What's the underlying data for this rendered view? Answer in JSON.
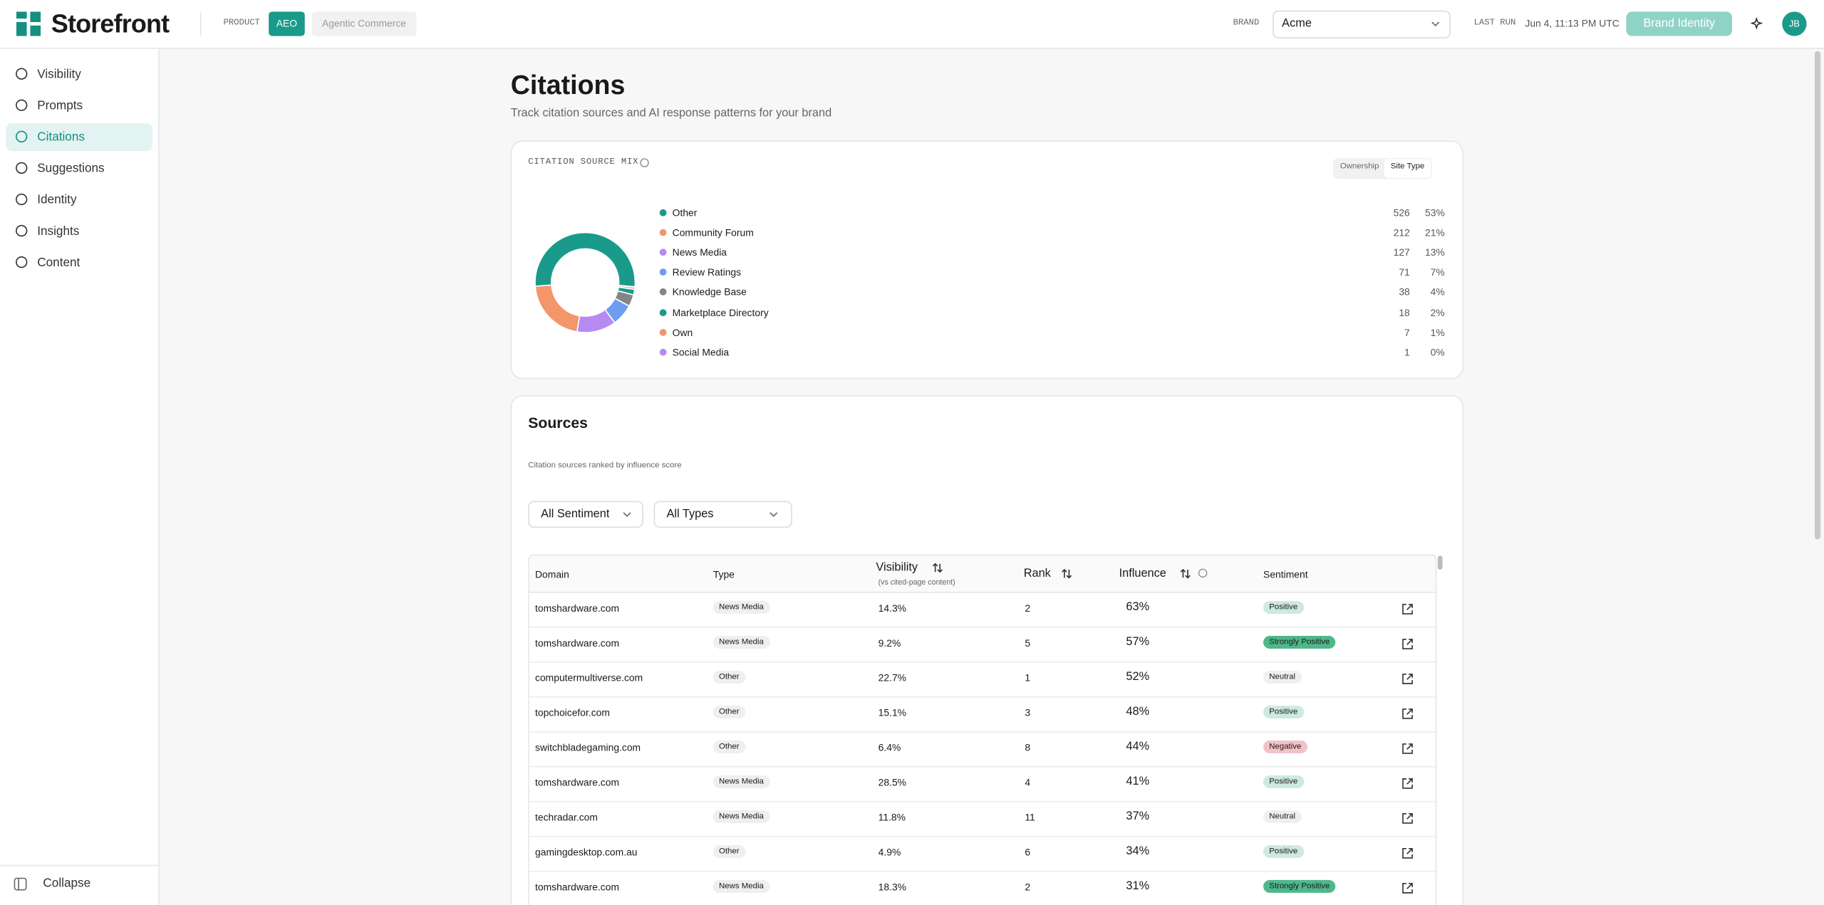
{
  "header": {
    "brand_name": "Storefront",
    "product_label": "PRODUCT",
    "product_tabs": [
      "AEO",
      "Agentic Commerce"
    ],
    "brand_label": "BRAND",
    "brand_select": "Acme",
    "last_run_label": "LAST RUN",
    "last_run": "Jun 4, 11:13 PM UTC",
    "button": "Brand Identity",
    "avatar": "JB"
  },
  "sidebar": {
    "items": [
      "Visibility",
      "Prompts",
      "Citations",
      "Suggestions",
      "Identity",
      "Insights",
      "Content"
    ],
    "active": 2,
    "collapse": "Collapse"
  },
  "page": {
    "title": "Citations",
    "subtitle": "Track citation sources and AI response patterns for your brand"
  },
  "citation_source_mix": {
    "type": "pie",
    "title": "CITATION SOURCE MIX",
    "toggles": [
      "Ownership",
      "Site Type"
    ],
    "active_toggle": 1,
    "items": [
      {
        "name": "Other",
        "count": 526,
        "share": "53%",
        "color": "#1a9a8a"
      },
      {
        "name": "Community Forum",
        "count": 212,
        "share": "21%",
        "color": "#f4956a"
      },
      {
        "name": "News Media",
        "count": 127,
        "share": "13%",
        "color": "#b68af2"
      },
      {
        "name": "Review Ratings",
        "count": 71,
        "share": "7%",
        "color": "#6e9df0"
      },
      {
        "name": "Knowledge Base",
        "count": 38,
        "share": "4%",
        "color": "#858585"
      },
      {
        "name": "Marketplace Directory",
        "count": 18,
        "share": "2%",
        "color": "#1a9a8a"
      },
      {
        "name": "Own",
        "count": 7,
        "share": "1%",
        "color": "#f4956a"
      },
      {
        "name": "Social Media",
        "count": 1,
        "share": "0%",
        "color": "#b68af2"
      }
    ]
  },
  "sources": {
    "title": "Sources",
    "description": "Citation sources ranked by influence score",
    "filters": [
      "All Sentiment",
      "All Types"
    ],
    "table": {
      "columns": [
        "Domain",
        "Type",
        "Visibility",
        "Rank",
        "Influence",
        "Sentiment"
      ],
      "visibility_note": "(vs cited-page content)",
      "rows": [
        {
          "domain": "tomshardware.com",
          "type": "News Media",
          "visibility": "14.3%",
          "rank": 2,
          "influence": "63%",
          "sentiment": "Positive",
          "sentiment_color": "#cdeadf"
        },
        {
          "domain": "tomshardware.com",
          "type": "News Media",
          "visibility": "9.2%",
          "rank": 5,
          "influence": "57%",
          "sentiment": "Strongly Positive",
          "sentiment_color": "#4fb88a"
        },
        {
          "domain": "computermultiverse.com",
          "type": "Other",
          "visibility": "22.7%",
          "rank": 1,
          "influence": "52%",
          "sentiment": "Neutral",
          "sentiment_color": "#efefef"
        },
        {
          "domain": "topchoicefor.com",
          "type": "Other",
          "visibility": "15.1%",
          "rank": 3,
          "influence": "48%",
          "sentiment": "Positive",
          "sentiment_color": "#cdeadf"
        },
        {
          "domain": "switchbladegaming.com",
          "type": "Other",
          "visibility": "6.4%",
          "rank": 8,
          "influence": "44%",
          "sentiment": "Negative",
          "sentiment_color": "#f2c2c8"
        },
        {
          "domain": "tomshardware.com",
          "type": "News Media",
          "visibility": "28.5%",
          "rank": 4,
          "influence": "41%",
          "sentiment": "Positive",
          "sentiment_color": "#cdeadf"
        },
        {
          "domain": "techradar.com",
          "type": "News Media",
          "visibility": "11.8%",
          "rank": 11,
          "influence": "37%",
          "sentiment": "Neutral",
          "sentiment_color": "#efefef"
        },
        {
          "domain": "gamingdesktop.com.au",
          "type": "Other",
          "visibility": "4.9%",
          "rank": 6,
          "influence": "34%",
          "sentiment": "Positive",
          "sentiment_color": "#cdeadf"
        },
        {
          "domain": "tomshardware.com",
          "type": "News Media",
          "visibility": "18.3%",
          "rank": 2,
          "influence": "31%",
          "sentiment": "Strongly Positive",
          "sentiment_color": "#4fb88a"
        }
      ]
    }
  }
}
